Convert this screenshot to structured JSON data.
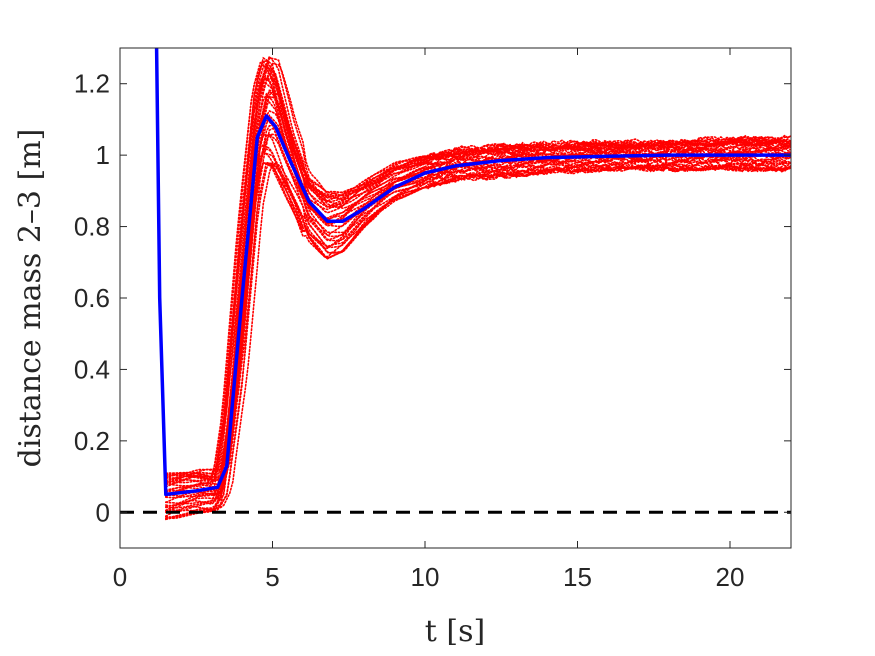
{
  "chart_data": {
    "type": "line",
    "title": "",
    "xlabel": "t [s]",
    "ylabel": "distance mass 2–3 [m]",
    "xlim": [
      0,
      22
    ],
    "ylim": [
      -0.1,
      1.3
    ],
    "x_ticks": [
      0,
      5,
      10,
      15,
      20
    ],
    "y_ticks": [
      0,
      0.2,
      0.4,
      0.6,
      0.8,
      1,
      1.2
    ],
    "x_tick_labels": [
      "0",
      "5",
      "10",
      "15",
      "20"
    ],
    "y_tick_labels": [
      "0",
      "0.2",
      "0.4",
      "0.6",
      "0.8",
      "1",
      "1.2"
    ],
    "grid": false,
    "legend": "none",
    "mean_trajectory": {
      "color": "#0000ff",
      "style": "solid",
      "x": [
        1.2,
        1.3,
        1.5,
        2.5,
        3.2,
        3.5,
        4.0,
        4.5,
        4.8,
        5.1,
        5.6,
        6.2,
        6.8,
        7.3,
        8.0,
        9.0,
        10.0,
        11.0,
        12.5,
        14.0,
        16.0,
        18.0,
        20.0,
        22.0
      ],
      "y": [
        1.3,
        0.6,
        0.05,
        0.06,
        0.07,
        0.13,
        0.6,
        1.05,
        1.11,
        1.08,
        0.98,
        0.87,
        0.815,
        0.815,
        0.85,
        0.91,
        0.95,
        0.97,
        0.985,
        0.993,
        0.997,
        1.0,
        1.0,
        1.0
      ]
    },
    "ensemble": {
      "color": "#ff0000",
      "style": "dotted",
      "count": 40,
      "x": [
        1.5,
        2.5,
        3.2,
        3.5,
        4.0,
        4.5,
        4.8,
        5.1,
        5.6,
        6.2,
        6.8,
        7.3,
        8.0,
        9.0,
        10.0,
        11.0,
        12.5,
        14.0,
        16.0,
        18.0,
        20.0,
        22.0
      ],
      "upper": [
        0.11,
        0.12,
        0.12,
        0.3,
        0.8,
        1.2,
        1.29,
        1.27,
        1.1,
        0.95,
        0.9,
        0.9,
        0.93,
        0.98,
        1.0,
        1.02,
        1.03,
        1.035,
        1.04,
        1.04,
        1.05,
        1.05
      ],
      "lower": [
        -0.02,
        0.0,
        0.0,
        0.03,
        0.35,
        0.85,
        0.98,
        0.97,
        0.88,
        0.76,
        0.71,
        0.73,
        0.8,
        0.87,
        0.91,
        0.93,
        0.94,
        0.95,
        0.96,
        0.96,
        0.96,
        0.96
      ]
    },
    "reference_line": {
      "y": 0,
      "color": "#000000",
      "style": "dashed"
    }
  }
}
